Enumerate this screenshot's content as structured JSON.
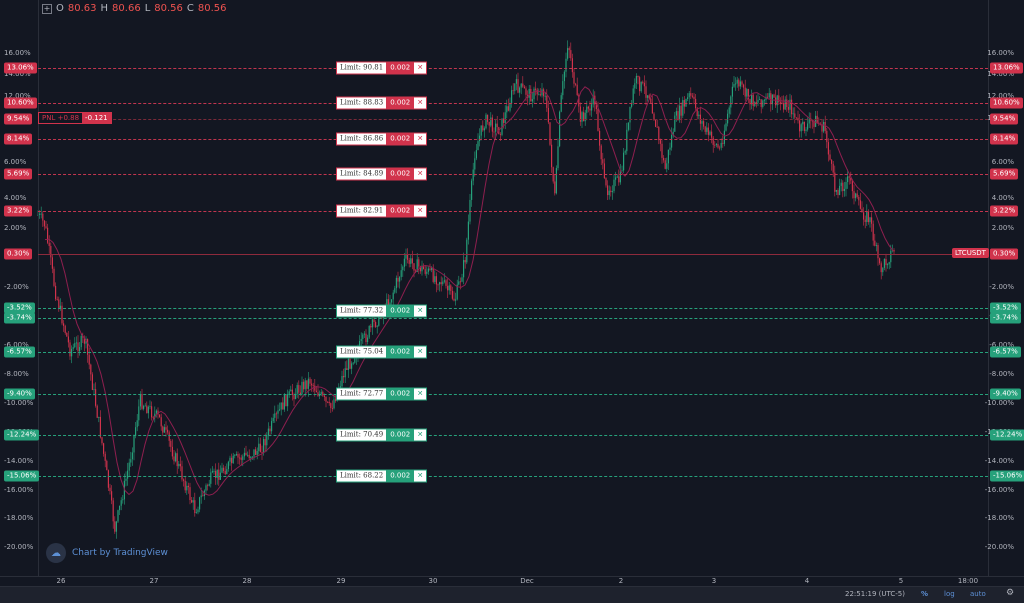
{
  "ohlc": {
    "o_label": "O",
    "o": "80.63",
    "h_label": "H",
    "h": "80.66",
    "l_label": "L",
    "l": "80.56",
    "c_label": "C",
    "c": "80.56"
  },
  "price_ticks": [
    "16.00%",
    "14.00%",
    "12.00%",
    "10.00%",
    "8.00%",
    "6.00%",
    "4.00%",
    "2.00%",
    "-2.00%",
    "-4.00%",
    "-6.00%",
    "-8.00%",
    "-10.00%",
    "-12.00%",
    "-14.00%",
    "-16.00%",
    "-18.00%",
    "-20.00%"
  ],
  "left_badges": [
    {
      "text": "13.06%",
      "color": "red"
    },
    {
      "text": "10.60%",
      "color": "red"
    },
    {
      "text": "9.54%",
      "color": "red"
    },
    {
      "text": "8.14%",
      "color": "red"
    },
    {
      "text": "5.69%",
      "color": "red"
    },
    {
      "text": "3.22%",
      "color": "red"
    },
    {
      "text": "0.30%",
      "color": "red"
    },
    {
      "text": "-3.52%",
      "color": "green"
    },
    {
      "text": "-3.74%",
      "color": "green"
    },
    {
      "text": "-6.57%",
      "color": "green"
    },
    {
      "text": "-9.40%",
      "color": "green"
    },
    {
      "text": "-12.24%",
      "color": "green"
    },
    {
      "text": "-15.06%",
      "color": "green"
    }
  ],
  "orders": [
    {
      "label": "Limit: 90.81",
      "qty": "0.002",
      "color": "red"
    },
    {
      "label": "Limit: 88.83",
      "qty": "0.002",
      "color": "red"
    },
    {
      "label": "Limit: 86.86",
      "qty": "0.002",
      "color": "red"
    },
    {
      "label": "Limit: 84.89",
      "qty": "0.002",
      "color": "red"
    },
    {
      "label": "Limit: 82.91",
      "qty": "0.002",
      "color": "red"
    },
    {
      "label": "Limit: 77.32",
      "qty": "0.002",
      "color": "green"
    },
    {
      "label": "Limit: 75.04",
      "qty": "0.002",
      "color": "green"
    },
    {
      "label": "Limit: 72.77",
      "qty": "0.002",
      "color": "green"
    },
    {
      "label": "Limit: 70.49",
      "qty": "0.002",
      "color": "green"
    },
    {
      "label": "Limit: 68.22",
      "qty": "0.002",
      "color": "green"
    }
  ],
  "pnl": {
    "label": "PNL +0.88",
    "value": "-0.121"
  },
  "symbol": "LTCUSDT",
  "symbol_pct": "0.30%",
  "dates": [
    "26",
    "27",
    "28",
    "29",
    "30",
    "Dec",
    "2",
    "3",
    "4",
    "5",
    "18:00"
  ],
  "watermark": "Chart by TradingView",
  "status": {
    "time": "22:51:19 (UTC-5)",
    "percent": "%",
    "log": "log",
    "auto": "auto"
  },
  "colors": {
    "background": "#131722",
    "up": "#26a17b",
    "down": "#d1334c",
    "ma": "#8e1f4f"
  },
  "icons": {
    "order_cancel": "close-icon",
    "watermark": "tradingview-logo-icon",
    "settings": "gear-icon",
    "add_indicator": "plus-icon"
  }
}
